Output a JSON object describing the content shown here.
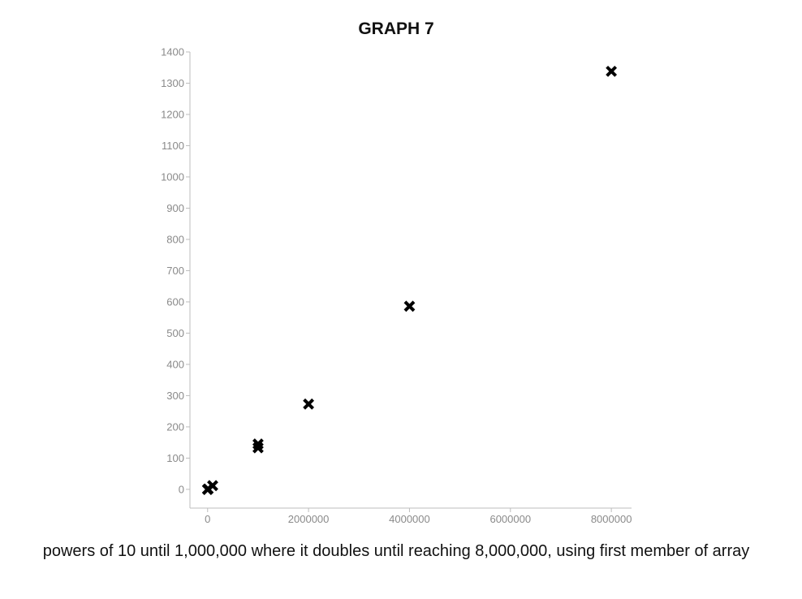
{
  "chart_data": {
    "type": "scatter",
    "title": "GRAPH 7",
    "caption": "powers of 10 until 1,000,000 where it doubles until reaching 8,000,000, using first member of array",
    "xlabel": "",
    "ylabel": "",
    "xlim": [
      -350000,
      8400000
    ],
    "ylim": [
      -60,
      1400
    ],
    "x_ticks": [
      0,
      2000000,
      4000000,
      6000000,
      8000000
    ],
    "x_tick_labels": [
      "0",
      "2000000",
      "4000000",
      "6000000",
      "8000000"
    ],
    "y_ticks": [
      0,
      100,
      200,
      300,
      400,
      500,
      600,
      700,
      800,
      900,
      1000,
      1100,
      1200,
      1300,
      1400
    ],
    "y_tick_labels": [
      "0",
      "100",
      "200",
      "300",
      "400",
      "500",
      "600",
      "700",
      "800",
      "900",
      "1000",
      "1100",
      "1200",
      "1300",
      "1400"
    ],
    "grid": false,
    "marker": "x",
    "series": [
      {
        "x": [
          10,
          100,
          1000,
          10000,
          100000,
          1000000,
          1000000,
          2000000,
          4000000,
          8000000
        ],
        "y": [
          0,
          0,
          0,
          1,
          12,
          145,
          133,
          273,
          586,
          1338
        ]
      }
    ],
    "colors": {
      "marker": "#000000",
      "axis": "#bdbdbd",
      "tick_label": "#8a8a8a",
      "title": "#111111"
    }
  }
}
